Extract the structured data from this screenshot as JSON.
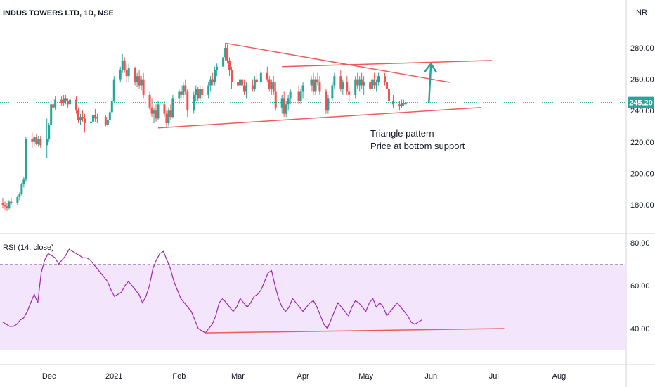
{
  "header": {
    "symbol": "INDUS TOWERS LTD, 1D, NSE",
    "currency": "INR"
  },
  "price_badge": {
    "value": "245.20",
    "color": "#26a69a"
  },
  "annotation": {
    "line1": "Triangle pattern",
    "line2": "Price at bottom support"
  },
  "rsi_header": "RSI (14, close)",
  "colors": {
    "up": "#26a69a",
    "down": "#ef5350",
    "trendline": "#f05a5a",
    "arrow": "#26a69a",
    "rsi_line": "#9c27b0",
    "rsi_band": "#f3e5fc",
    "rsi_band_border": "#b29ac2",
    "axis_border": "#d1d4dc"
  },
  "chart_data": [
    {
      "type": "candlestick",
      "title": "INDUS TOWERS LTD, 1D, NSE",
      "ylim": [
        170,
        300
      ],
      "y_ticks": [
        "280.00",
        "260.00",
        "240.00",
        "220.00",
        "200.00",
        "180.00"
      ],
      "y_tick_values": [
        280,
        260,
        240,
        220,
        200,
        180
      ],
      "x_ticks": [
        "Dec",
        "2021",
        "Feb",
        "Mar",
        "Apr",
        "May",
        "Jun",
        "Jul",
        "Aug"
      ],
      "x_tick_dates": [
        "2020-12-01",
        "2021-01-01",
        "2021-02-01",
        "2021-03-01",
        "2021-04-01",
        "2021-05-01",
        "2021-06-01",
        "2021-07-01",
        "2021-08-01"
      ],
      "x_range": [
        "2020-11-09",
        "2021-08-31"
      ],
      "last_price": 245.2,
      "candles": [
        [
          "2020-11-09",
          181,
          184,
          178,
          180
        ],
        [
          "2020-11-10",
          180,
          182,
          177,
          179
        ],
        [
          "2020-11-11",
          179,
          181,
          176,
          178
        ],
        [
          "2020-11-12",
          178,
          183,
          177,
          182
        ],
        [
          "2020-11-13",
          182,
          184,
          180,
          181
        ],
        [
          "2020-11-16",
          181,
          186,
          180,
          185
        ],
        [
          "2020-11-17",
          185,
          188,
          183,
          187
        ],
        [
          "2020-11-18",
          187,
          194,
          186,
          193
        ],
        [
          "2020-11-19",
          193,
          198,
          191,
          196
        ],
        [
          "2020-11-20",
          196,
          223,
          195,
          222
        ],
        [
          "2020-11-23",
          222,
          226,
          216,
          220
        ],
        [
          "2020-11-24",
          220,
          224,
          217,
          223
        ],
        [
          "2020-11-25",
          223,
          225,
          218,
          219
        ],
        [
          "2020-11-26",
          219,
          224,
          217,
          222
        ],
        [
          "2020-11-27",
          222,
          224,
          216,
          218
        ],
        [
          "2020-11-30",
          218,
          235,
          210,
          222
        ],
        [
          "2020-12-01",
          222,
          232,
          220,
          231
        ],
        [
          "2020-12-02",
          231,
          246,
          230,
          244
        ],
        [
          "2020-12-03",
          244,
          248,
          240,
          242
        ],
        [
          "2020-12-04",
          242,
          249,
          240,
          247
        ],
        [
          "2020-12-07",
          247,
          249,
          243,
          245
        ],
        [
          "2020-12-08",
          245,
          250,
          243,
          248
        ],
        [
          "2020-12-09",
          248,
          250,
          244,
          246
        ],
        [
          "2020-12-10",
          246,
          248,
          242,
          244
        ],
        [
          "2020-12-11",
          244,
          249,
          243,
          247
        ],
        [
          "2020-12-14",
          247,
          249,
          238,
          240
        ],
        [
          "2020-12-15",
          240,
          242,
          232,
          234
        ],
        [
          "2020-12-16",
          234,
          238,
          231,
          236
        ],
        [
          "2020-12-17",
          236,
          240,
          233,
          235
        ],
        [
          "2020-12-18",
          235,
          238,
          226,
          232
        ],
        [
          "2020-12-21",
          232,
          235,
          227,
          233
        ],
        [
          "2020-12-22",
          233,
          238,
          231,
          237
        ],
        [
          "2020-12-23",
          237,
          241,
          233,
          235
        ],
        [
          "2020-12-24",
          235,
          238,
          232,
          236
        ],
        [
          "2020-12-28",
          236,
          237,
          230,
          231
        ],
        [
          "2020-12-29",
          231,
          236,
          229,
          234
        ],
        [
          "2020-12-30",
          234,
          240,
          232,
          239
        ],
        [
          "2020-12-31",
          239,
          248,
          238,
          246
        ],
        [
          "2021-01-01",
          246,
          262,
          245,
          260
        ],
        [
          "2021-01-04",
          260,
          268,
          258,
          266
        ],
        [
          "2021-01-05",
          266,
          276,
          264,
          272
        ],
        [
          "2021-01-06",
          272,
          274,
          264,
          266
        ],
        [
          "2021-01-07",
          266,
          270,
          258,
          262
        ],
        [
          "2021-01-08",
          262,
          270,
          258,
          267
        ],
        [
          "2021-01-11",
          267,
          268,
          256,
          258
        ],
        [
          "2021-01-12",
          258,
          264,
          255,
          262
        ],
        [
          "2021-01-13",
          262,
          266,
          254,
          256
        ],
        [
          "2021-01-14",
          256,
          262,
          253,
          260
        ],
        [
          "2021-01-15",
          260,
          264,
          248,
          250
        ],
        [
          "2021-01-18",
          250,
          252,
          240,
          242
        ],
        [
          "2021-01-19",
          242,
          248,
          236,
          238
        ],
        [
          "2021-01-20",
          238,
          242,
          232,
          240
        ],
        [
          "2021-01-21",
          240,
          244,
          233,
          235
        ],
        [
          "2021-01-22",
          235,
          246,
          234,
          244
        ],
        [
          "2021-01-25",
          244,
          246,
          236,
          238
        ],
        [
          "2021-01-26",
          238,
          240,
          229,
          232
        ],
        [
          "2021-01-27",
          232,
          242,
          230,
          240
        ],
        [
          "2021-01-28",
          240,
          244,
          234,
          236
        ],
        [
          "2021-01-29",
          236,
          250,
          235,
          248
        ],
        [
          "2021-02-01",
          248,
          254,
          244,
          252
        ],
        [
          "2021-02-02",
          252,
          256,
          248,
          250
        ],
        [
          "2021-02-03",
          250,
          258,
          248,
          256
        ],
        [
          "2021-02-04",
          256,
          260,
          250,
          252
        ],
        [
          "2021-02-05",
          252,
          254,
          236,
          240
        ],
        [
          "2021-02-08",
          240,
          252,
          238,
          250
        ],
        [
          "2021-02-09",
          250,
          256,
          246,
          254
        ],
        [
          "2021-02-10",
          254,
          255,
          246,
          248
        ],
        [
          "2021-02-11",
          248,
          256,
          246,
          254
        ],
        [
          "2021-02-12",
          254,
          256,
          248,
          250
        ],
        [
          "2021-02-15",
          250,
          258,
          248,
          256
        ],
        [
          "2021-02-16",
          256,
          262,
          252,
          260
        ],
        [
          "2021-02-17",
          260,
          264,
          256,
          258
        ],
        [
          "2021-02-18",
          258,
          268,
          256,
          266
        ],
        [
          "2021-02-19",
          266,
          270,
          262,
          268
        ],
        [
          "2021-02-22",
          268,
          276,
          266,
          274
        ],
        [
          "2021-02-23",
          274,
          283,
          272,
          280
        ],
        [
          "2021-02-24",
          280,
          282,
          270,
          272
        ],
        [
          "2021-02-25",
          272,
          274,
          262,
          266
        ],
        [
          "2021-02-26",
          266,
          268,
          254,
          258
        ],
        [
          "2021-03-01",
          258,
          262,
          252,
          256
        ],
        [
          "2021-03-02",
          256,
          262,
          254,
          260
        ],
        [
          "2021-03-03",
          260,
          264,
          254,
          256
        ],
        [
          "2021-03-04",
          256,
          260,
          250,
          252
        ],
        [
          "2021-03-05",
          252,
          258,
          248,
          256
        ],
        [
          "2021-03-08",
          256,
          260,
          252,
          254
        ],
        [
          "2021-03-09",
          254,
          262,
          252,
          260
        ],
        [
          "2021-03-10",
          260,
          264,
          256,
          258
        ],
        [
          "2021-03-12",
          258,
          266,
          256,
          264
        ],
        [
          "2021-03-15",
          264,
          268,
          258,
          260
        ],
        [
          "2021-03-16",
          260,
          262,
          252,
          254
        ],
        [
          "2021-03-17",
          254,
          260,
          250,
          258
        ],
        [
          "2021-03-18",
          258,
          262,
          250,
          252
        ],
        [
          "2021-03-19",
          252,
          258,
          240,
          242
        ],
        [
          "2021-03-22",
          242,
          250,
          238,
          248
        ],
        [
          "2021-03-23",
          248,
          252,
          236,
          238
        ],
        [
          "2021-03-24",
          238,
          246,
          236,
          244
        ],
        [
          "2021-03-25",
          244,
          250,
          240,
          248
        ],
        [
          "2021-03-26",
          248,
          254,
          244,
          252
        ],
        [
          "2021-03-30",
          252,
          256,
          244,
          246
        ],
        [
          "2021-03-31",
          246,
          254,
          244,
          252
        ],
        [
          "2021-04-01",
          252,
          258,
          248,
          256
        ],
        [
          "2021-04-05",
          256,
          262,
          252,
          260
        ],
        [
          "2021-04-06",
          260,
          264,
          250,
          252
        ],
        [
          "2021-04-07",
          252,
          262,
          250,
          260
        ],
        [
          "2021-04-08",
          260,
          264,
          256,
          258
        ],
        [
          "2021-04-09",
          258,
          262,
          250,
          252
        ],
        [
          "2021-04-12",
          252,
          254,
          238,
          240
        ],
        [
          "2021-04-13",
          240,
          250,
          238,
          248
        ],
        [
          "2021-04-15",
          248,
          258,
          246,
          256
        ],
        [
          "2021-04-16",
          256,
          264,
          254,
          262
        ],
        [
          "2021-04-19",
          262,
          266,
          252,
          254
        ],
        [
          "2021-04-20",
          254,
          260,
          250,
          258
        ],
        [
          "2021-04-22",
          258,
          262,
          250,
          252
        ],
        [
          "2021-04-23",
          252,
          256,
          246,
          250
        ],
        [
          "2021-04-26",
          250,
          262,
          248,
          260
        ],
        [
          "2021-04-27",
          260,
          264,
          254,
          256
        ],
        [
          "2021-04-28",
          256,
          262,
          252,
          260
        ],
        [
          "2021-04-29",
          260,
          264,
          254,
          256
        ],
        [
          "2021-04-30",
          256,
          262,
          250,
          258
        ],
        [
          "2021-05-03",
          258,
          260,
          252,
          254
        ],
        [
          "2021-05-04",
          254,
          262,
          252,
          260
        ],
        [
          "2021-05-05",
          260,
          264,
          254,
          256
        ],
        [
          "2021-05-06",
          256,
          260,
          252,
          258
        ],
        [
          "2021-05-07",
          258,
          264,
          256,
          262
        ],
        [
          "2021-05-10",
          262,
          264,
          256,
          258
        ],
        [
          "2021-05-11",
          258,
          262,
          252,
          254
        ],
        [
          "2021-05-12",
          254,
          258,
          244,
          246
        ],
        [
          "2021-05-14",
          246,
          250,
          242,
          244
        ],
        [
          "2021-05-17",
          244,
          246,
          240,
          243
        ],
        [
          "2021-05-18",
          243,
          247,
          242,
          245
        ],
        [
          "2021-05-19",
          245,
          247,
          243,
          244
        ],
        [
          "2021-05-20",
          244,
          247,
          243,
          245.2
        ]
      ],
      "trendlines": [
        {
          "name": "upper",
          "from": [
            "2021-02-23",
            283
          ],
          "to": [
            "2021-06-10",
            258
          ]
        },
        {
          "name": "lower",
          "from": [
            "2021-01-22",
            229
          ],
          "to": [
            "2021-06-25",
            242
          ]
        },
        {
          "name": "resistance",
          "from": [
            "2021-03-22",
            268
          ],
          "to": [
            "2021-06-30",
            272
          ]
        }
      ],
      "arrow": {
        "from": [
          "2021-05-31",
          245
        ],
        "to": [
          "2021-06-01",
          270
        ]
      }
    },
    {
      "type": "line",
      "title": "RSI (14, close)",
      "ylim": [
        28,
        82
      ],
      "y_ticks": [
        "80.00",
        "60.00",
        "40.00"
      ],
      "y_tick_values": [
        80,
        60,
        40
      ],
      "band": [
        30,
        70
      ],
      "values": [
        43,
        42,
        41,
        41,
        42,
        44,
        45,
        48,
        52,
        56,
        52,
        66,
        72,
        75,
        74,
        73,
        70,
        72,
        74,
        77,
        76,
        75,
        74,
        73,
        73,
        72,
        70,
        68,
        66,
        64,
        62,
        58,
        55,
        56,
        57,
        60,
        62,
        60,
        58,
        56,
        52,
        55,
        60,
        68,
        72,
        75,
        76,
        72,
        68,
        62,
        58,
        54,
        52,
        50,
        48,
        44,
        40,
        39,
        38,
        40,
        42,
        46,
        52,
        54,
        52,
        50,
        48,
        50,
        54,
        52,
        50,
        52,
        55,
        56,
        58,
        62,
        66,
        67,
        60,
        54,
        50,
        48,
        50,
        54,
        52,
        50,
        48,
        50,
        52,
        53,
        50,
        46,
        42,
        40,
        44,
        48,
        52,
        50,
        48,
        46,
        50,
        53,
        52,
        50,
        48,
        52,
        54,
        50,
        52,
        50,
        46,
        48,
        50,
        52,
        50,
        48,
        46,
        43,
        42,
        43,
        44
      ],
      "support_line": {
        "from": [
          57,
          38
        ],
        "to": [
          136,
          40
        ]
      }
    }
  ]
}
